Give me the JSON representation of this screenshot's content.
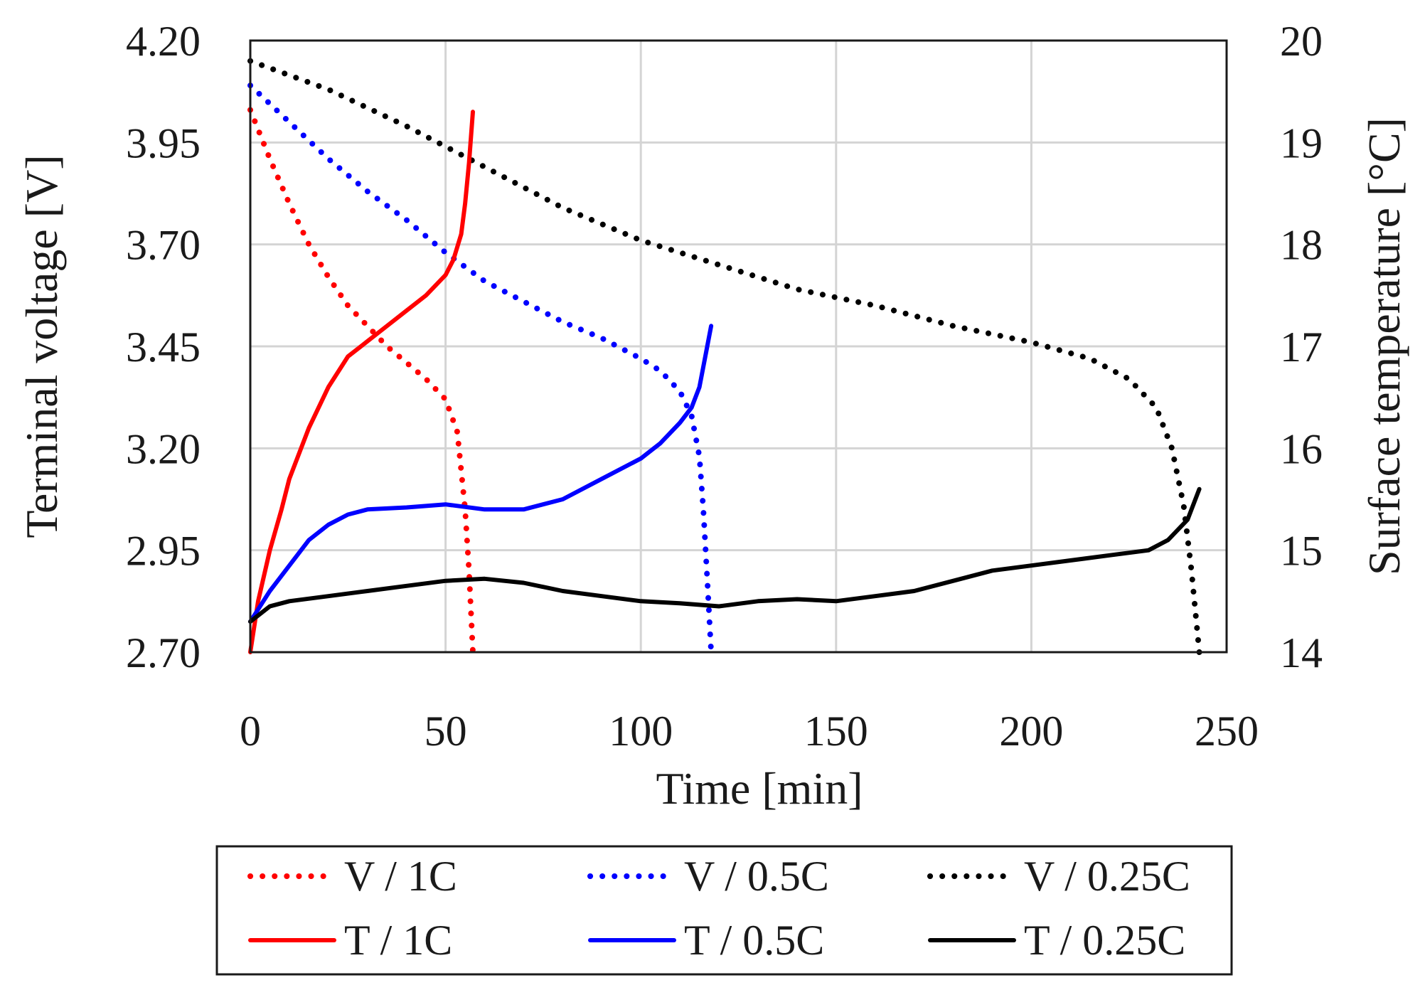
{
  "chart_data": {
    "type": "line",
    "title": "",
    "xlabel": "Time [min]",
    "ylabel_left": "Terminal voltage [V]",
    "ylabel_right": "Surface temperature [°C]",
    "xlim": [
      0,
      250
    ],
    "ylim_left": [
      2.7,
      4.2
    ],
    "ylim_right": [
      14,
      20
    ],
    "x_ticks": [
      "0",
      "50",
      "100",
      "150",
      "200",
      "250"
    ],
    "y_left_ticks": [
      "2.70",
      "2.95",
      "3.20",
      "3.45",
      "3.70",
      "3.95",
      "4.20"
    ],
    "y_right_ticks": [
      "14",
      "15",
      "16",
      "17",
      "18",
      "19",
      "20"
    ],
    "grid": true,
    "legend_position": "bottom",
    "colors": {
      "1C": "#ff0000",
      "0.5C": "#0000ff",
      "0.25C": "#000000"
    },
    "series": [
      {
        "name": "V / 1C",
        "axis": "left",
        "style": "dotted",
        "color": "#ff0000",
        "x": [
          0,
          5,
          10,
          15,
          20,
          25,
          30,
          35,
          40,
          45,
          50,
          53,
          55,
          56,
          57
        ],
        "y": [
          4.03,
          3.91,
          3.8,
          3.7,
          3.62,
          3.55,
          3.5,
          3.45,
          3.41,
          3.37,
          3.32,
          3.24,
          3.05,
          2.9,
          2.7
        ]
      },
      {
        "name": "V / 0.5C",
        "axis": "left",
        "style": "dotted",
        "color": "#0000ff",
        "x": [
          0,
          10,
          20,
          30,
          40,
          50,
          60,
          70,
          80,
          90,
          100,
          105,
          110,
          113,
          115,
          116,
          117,
          118
        ],
        "y": [
          4.09,
          4.0,
          3.91,
          3.83,
          3.76,
          3.68,
          3.61,
          3.56,
          3.51,
          3.47,
          3.42,
          3.39,
          3.34,
          3.28,
          3.18,
          3.05,
          2.88,
          2.7
        ]
      },
      {
        "name": "V / 0.25C",
        "axis": "left",
        "style": "dotted",
        "color": "#000000",
        "x": [
          0,
          20,
          40,
          60,
          80,
          100,
          120,
          140,
          160,
          180,
          200,
          215,
          225,
          232,
          236,
          239,
          241,
          243
        ],
        "y": [
          4.15,
          4.08,
          3.99,
          3.89,
          3.79,
          3.71,
          3.65,
          3.59,
          3.55,
          3.5,
          3.46,
          3.42,
          3.37,
          3.3,
          3.2,
          3.06,
          2.9,
          2.7
        ]
      },
      {
        "name": "T / 1C",
        "axis": "right",
        "style": "solid",
        "color": "#ff0000",
        "x": [
          0,
          2,
          5,
          8,
          10,
          15,
          20,
          25,
          30,
          35,
          40,
          45,
          50,
          52,
          54,
          55,
          56,
          57
        ],
        "y": [
          14.0,
          14.5,
          15.0,
          15.4,
          15.7,
          16.2,
          16.6,
          16.9,
          17.05,
          17.2,
          17.35,
          17.5,
          17.7,
          17.85,
          18.1,
          18.4,
          18.8,
          19.3
        ]
      },
      {
        "name": "T / 0.5C",
        "axis": "right",
        "style": "solid",
        "color": "#0000ff",
        "x": [
          0,
          5,
          10,
          15,
          20,
          25,
          30,
          40,
          50,
          60,
          70,
          80,
          90,
          100,
          105,
          110,
          113,
          115,
          116,
          117,
          118
        ],
        "y": [
          14.3,
          14.6,
          14.85,
          15.1,
          15.25,
          15.35,
          15.4,
          15.42,
          15.45,
          15.4,
          15.4,
          15.5,
          15.7,
          15.9,
          16.05,
          16.25,
          16.4,
          16.6,
          16.8,
          17.0,
          17.2
        ]
      },
      {
        "name": "T / 0.25C",
        "axis": "right",
        "style": "solid",
        "color": "#000000",
        "x": [
          0,
          5,
          10,
          20,
          30,
          40,
          50,
          60,
          70,
          80,
          90,
          100,
          110,
          120,
          130,
          140,
          150,
          160,
          170,
          180,
          190,
          200,
          210,
          220,
          230,
          235,
          240,
          243
        ],
        "y": [
          14.3,
          14.45,
          14.5,
          14.55,
          14.6,
          14.65,
          14.7,
          14.72,
          14.68,
          14.6,
          14.55,
          14.5,
          14.48,
          14.45,
          14.5,
          14.52,
          14.5,
          14.55,
          14.6,
          14.7,
          14.8,
          14.85,
          14.9,
          14.95,
          15.0,
          15.1,
          15.3,
          15.6
        ]
      }
    ]
  }
}
